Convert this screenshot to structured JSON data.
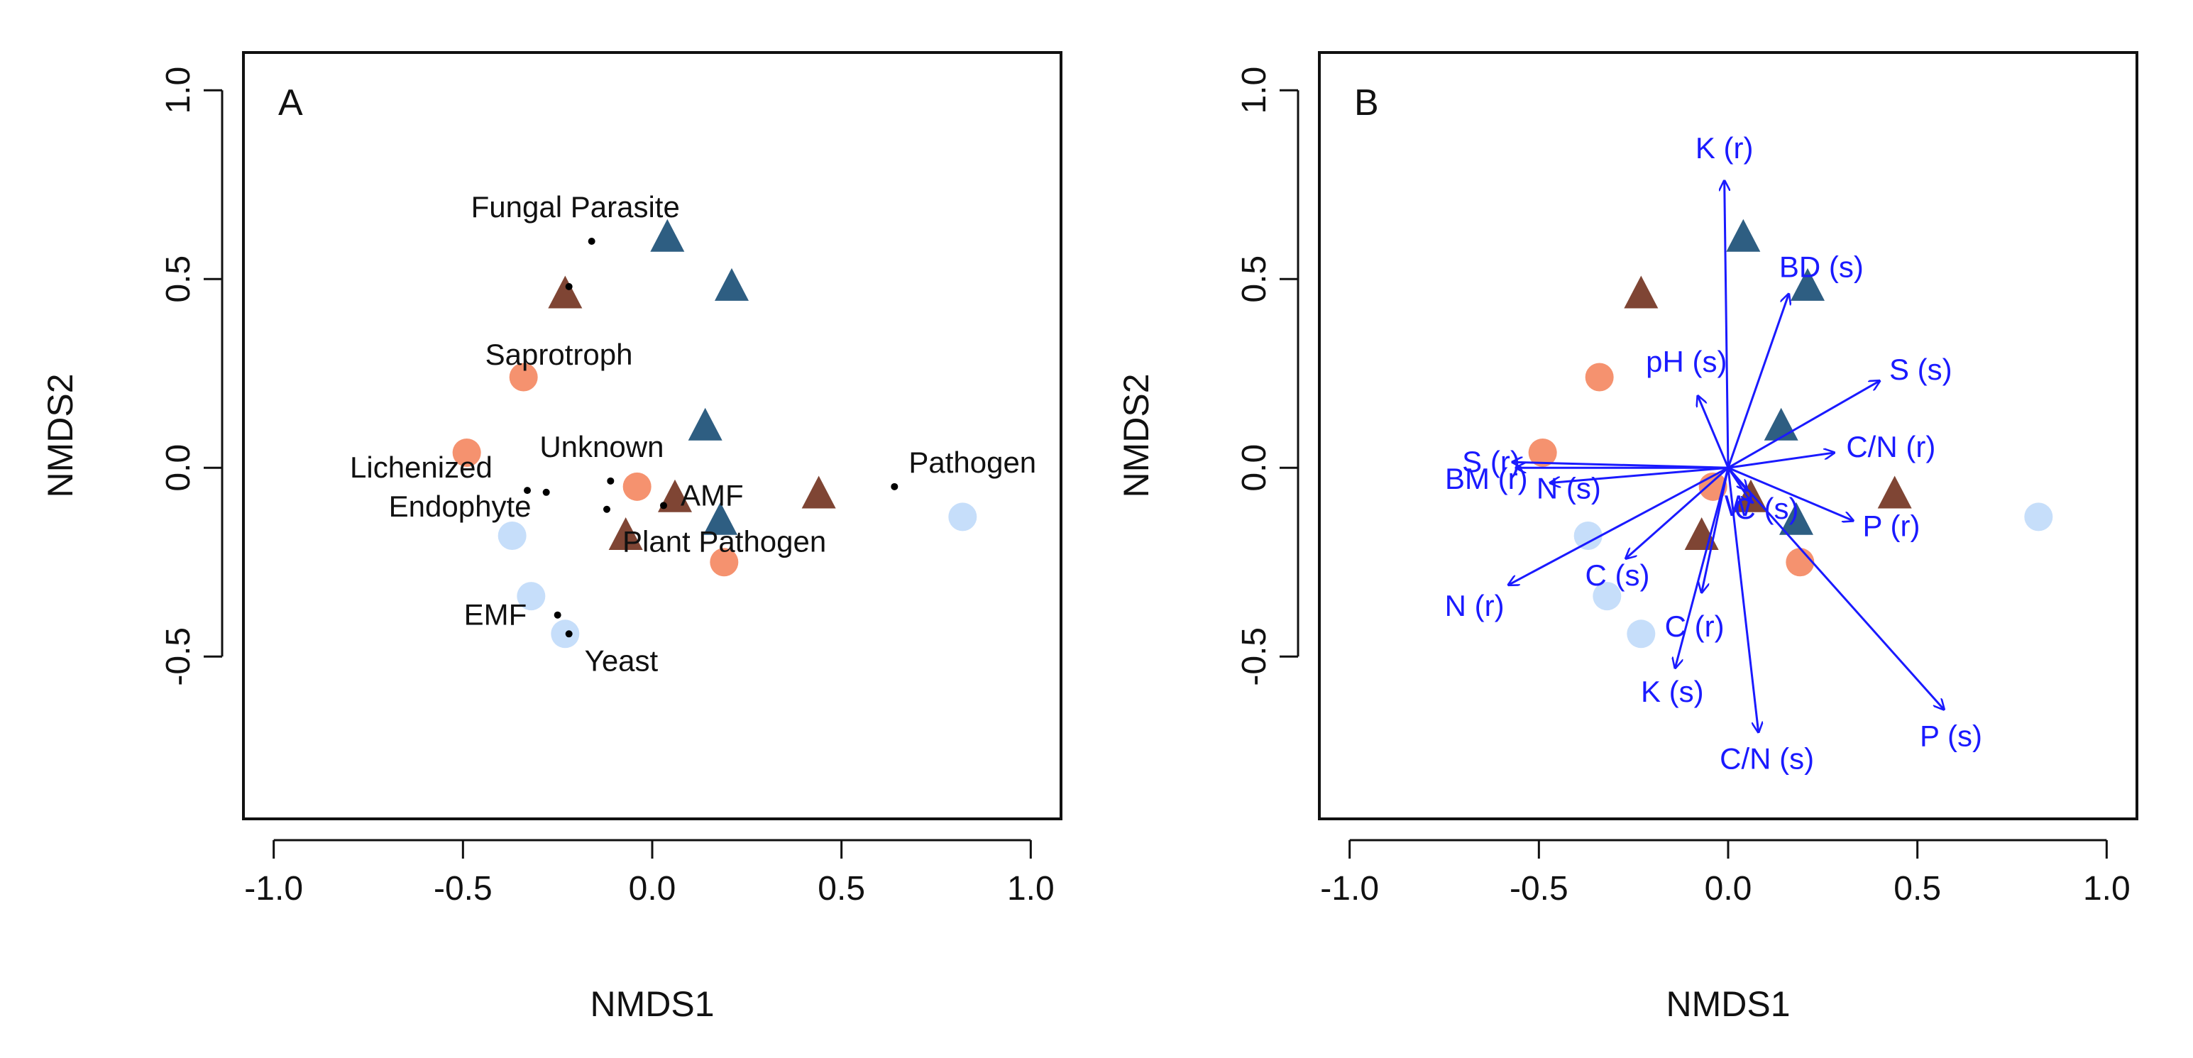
{
  "figure": {
    "colors": {
      "salmon": "#f5926f",
      "light_blue": "#c6defa",
      "dark_brown": "#7f4534",
      "steel_blue": "#2e5e82",
      "vector": "#1a1aff",
      "frame": "#111111"
    }
  },
  "chart_data": [
    {
      "type": "scatter",
      "panel": "A",
      "xlabel": "NMDS1",
      "ylabel": "NMDS2",
      "xlim": [
        -1.08,
        1.08
      ],
      "ylim": [
        -0.93,
        1.1
      ],
      "xticks": [
        -1.0,
        -0.5,
        0.0,
        0.5,
        1.0
      ],
      "xtick_labels": [
        "-1.0",
        "-0.5",
        "0.0",
        "0.5",
        "1.0"
      ],
      "yticks": [
        -0.5,
        0.0,
        0.5,
        1.0
      ],
      "ytick_labels": [
        "-0.5",
        "0.0",
        "0.5",
        "1.0"
      ],
      "series": [
        {
          "name": "salmon circles",
          "shape": "circle",
          "color": "#f5926f",
          "points": [
            [
              -0.34,
              0.24
            ],
            [
              -0.49,
              0.04
            ],
            [
              -0.04,
              -0.05
            ],
            [
              0.19,
              -0.25
            ]
          ]
        },
        {
          "name": "light blue circles",
          "shape": "circle",
          "color": "#c6defa",
          "points": [
            [
              -0.37,
              -0.18
            ],
            [
              -0.32,
              -0.34
            ],
            [
              -0.23,
              -0.44
            ],
            [
              0.82,
              -0.13
            ]
          ]
        },
        {
          "name": "dark brown triangles",
          "shape": "triangle",
          "color": "#7f4534",
          "points": [
            [
              -0.23,
              0.46
            ],
            [
              0.06,
              -0.08
            ],
            [
              -0.07,
              -0.18
            ],
            [
              0.44,
              -0.07
            ]
          ]
        },
        {
          "name": "steel blue triangles",
          "shape": "triangle",
          "color": "#2e5e82",
          "points": [
            [
              0.04,
              0.61
            ],
            [
              0.21,
              0.48
            ],
            [
              0.14,
              0.11
            ],
            [
              0.18,
              -0.14
            ]
          ]
        }
      ],
      "guilds": [
        {
          "label": "Fungal Parasite",
          "x": -0.16,
          "y": 0.6
        },
        {
          "label": "Saprotroph",
          "x": -0.22,
          "y": 0.48
        },
        {
          "label": "Lichenized",
          "x": -0.33,
          "y": -0.06
        },
        {
          "label": "Endophyte",
          "x": -0.28,
          "y": -0.065
        },
        {
          "label": "Unknown",
          "x": -0.11,
          "y": -0.035
        },
        {
          "label": "AMF",
          "x": 0.03,
          "y": -0.1
        },
        {
          "label": "Plant Pathogen",
          "x": -0.12,
          "y": -0.11
        },
        {
          "label": "Pathogen",
          "x": 0.64,
          "y": -0.05
        },
        {
          "label": "EMF",
          "x": -0.25,
          "y": -0.39
        },
        {
          "label": "Yeast",
          "x": -0.22,
          "y": -0.44
        }
      ]
    },
    {
      "type": "scatter",
      "panel": "B",
      "xlabel": "NMDS1",
      "ylabel": "NMDS2",
      "xlim": [
        -1.08,
        1.08
      ],
      "ylim": [
        -0.93,
        1.1
      ],
      "xticks": [
        -1.0,
        -0.5,
        0.0,
        0.5,
        1.0
      ],
      "xtick_labels": [
        "-1.0",
        "-0.5",
        "0.0",
        "0.5",
        "1.0"
      ],
      "yticks": [
        -0.5,
        0.0,
        0.5,
        1.0
      ],
      "ytick_labels": [
        "-0.5",
        "0.0",
        "0.5",
        "1.0"
      ],
      "series": [
        {
          "name": "salmon circles",
          "shape": "circle",
          "color": "#f5926f",
          "points": [
            [
              -0.34,
              0.24
            ],
            [
              -0.49,
              0.04
            ],
            [
              -0.04,
              -0.05
            ],
            [
              0.19,
              -0.25
            ]
          ]
        },
        {
          "name": "light blue circles",
          "shape": "circle",
          "color": "#c6defa",
          "points": [
            [
              -0.37,
              -0.18
            ],
            [
              -0.32,
              -0.34
            ],
            [
              -0.23,
              -0.44
            ],
            [
              0.82,
              -0.13
            ]
          ]
        },
        {
          "name": "dark brown triangles",
          "shape": "triangle",
          "color": "#7f4534",
          "points": [
            [
              -0.23,
              0.46
            ],
            [
              0.06,
              -0.08
            ],
            [
              -0.07,
              -0.18
            ],
            [
              0.44,
              -0.07
            ]
          ]
        },
        {
          "name": "steel blue triangles",
          "shape": "triangle",
          "color": "#2e5e82",
          "points": [
            [
              0.04,
              0.61
            ],
            [
              0.21,
              0.48
            ],
            [
              0.14,
              0.11
            ],
            [
              0.18,
              -0.14
            ]
          ]
        }
      ],
      "vectors": [
        {
          "label": "K (r)",
          "x": -0.01,
          "y": 0.76
        },
        {
          "label": "BD (s)",
          "x": 0.16,
          "y": 0.46
        },
        {
          "label": "S (s)",
          "x": 0.4,
          "y": 0.23
        },
        {
          "label": "pH (s)",
          "x": -0.08,
          "y": 0.19
        },
        {
          "label": "C/N (r)",
          "x": 0.28,
          "y": 0.04
        },
        {
          "label": "S (r)",
          "x": -0.57,
          "y": 0.015
        },
        {
          "label": "BM (r)",
          "x": -0.56,
          "y": 0.0
        },
        {
          "label": "N (s)",
          "x": -0.47,
          "y": -0.04
        },
        {
          "label": "W",
          "x": 0.05,
          "y": -0.06
        },
        {
          "label": "C (s)",
          "x": 0.06,
          "y": -0.09
        },
        {
          "label": "P (r)",
          "x": 0.33,
          "y": -0.14
        },
        {
          "label": "C (s)",
          "x": -0.27,
          "y": -0.24
        },
        {
          "label": "C (r)",
          "x": -0.07,
          "y": -0.33
        },
        {
          "label": "N (r)",
          "x": -0.58,
          "y": -0.31
        },
        {
          "label": "K (s)",
          "x": -0.14,
          "y": -0.53
        },
        {
          "label": "C/N (s)",
          "x": 0.08,
          "y": -0.7
        },
        {
          "label": "P (s)",
          "x": 0.57,
          "y": -0.64
        }
      ]
    }
  ]
}
